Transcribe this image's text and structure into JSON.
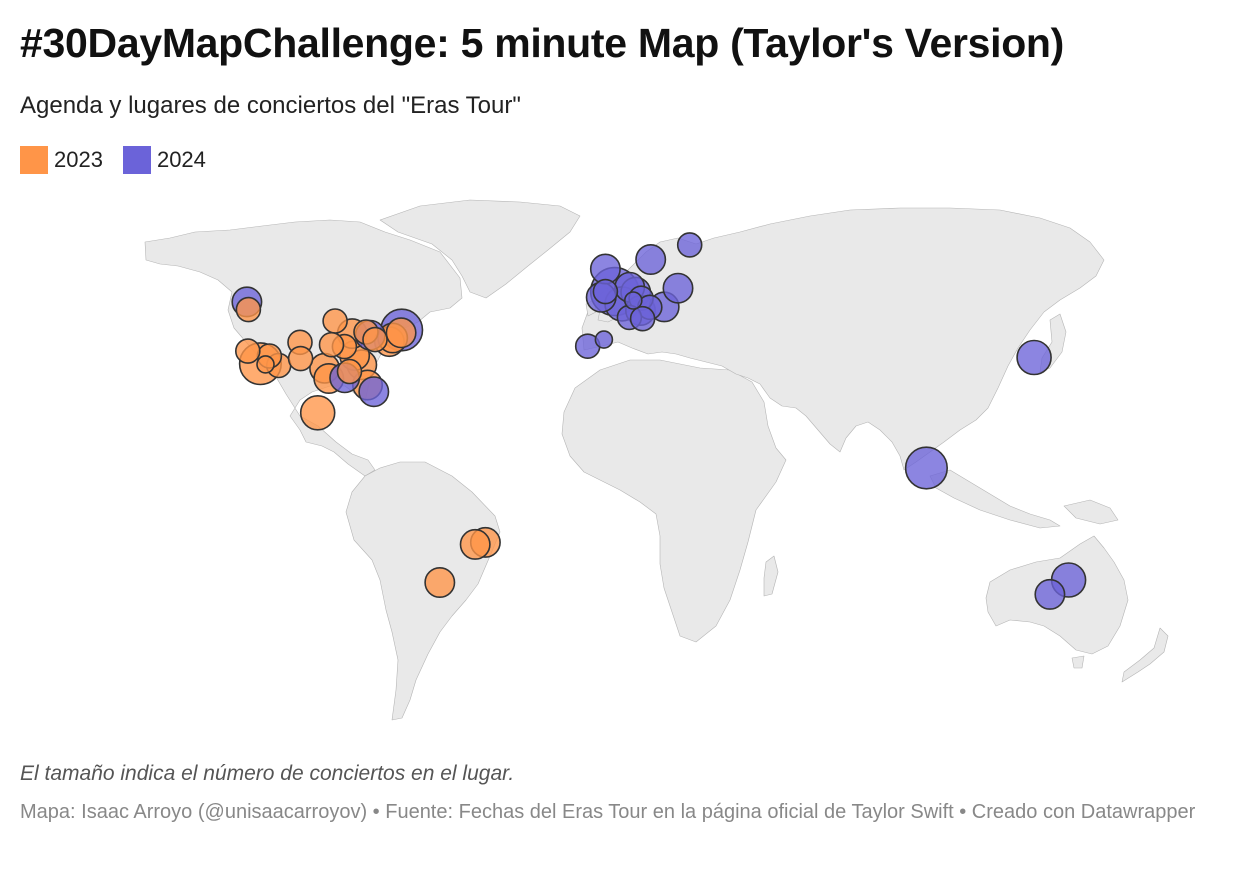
{
  "header": {
    "title": "#30DayMapChallenge: 5 minute Map (Taylor's Version)",
    "subtitle": "Agenda y lugares de conciertos del \"Eras Tour\""
  },
  "legend": [
    {
      "label": "2023",
      "color": "#ff9548"
    },
    {
      "label": "2024",
      "color": "#6b63d9"
    }
  ],
  "footer": {
    "note": "El tamaño indica el número de conciertos en el lugar.",
    "source": "Mapa: Isaac Arroyo (@unisaacarroyov) • Fuente: Fechas del Eras Tour en la página oficial de Taylor Swift • Creado con Datawrapper"
  },
  "map_data": {
    "encoding": {
      "size": "número de conciertos en el lugar",
      "color": "año"
    },
    "venues": [
      {
        "year": 2023,
        "lon": -112.1,
        "lat": 33.5,
        "concerts": 2
      },
      {
        "year": 2023,
        "lon": -115.2,
        "lat": 36.1,
        "concerts": 2
      },
      {
        "year": 2023,
        "lon": -96.8,
        "lat": 32.7,
        "concerts": 3
      },
      {
        "year": 2023,
        "lon": -95.4,
        "lat": 29.8,
        "concerts": 3
      },
      {
        "year": 2023,
        "lon": -84.4,
        "lat": 33.7,
        "concerts": 3
      },
      {
        "year": 2023,
        "lon": -86.8,
        "lat": 36.2,
        "concerts": 3
      },
      {
        "year": 2023,
        "lon": -82.5,
        "lat": 27.9,
        "concerts": 3
      },
      {
        "year": 2023,
        "lon": -75.2,
        "lat": 39.9,
        "concerts": 3
      },
      {
        "year": 2023,
        "lon": -74.1,
        "lat": 40.8,
        "concerts": 3
      },
      {
        "year": 2023,
        "lon": -71.3,
        "lat": 42.1,
        "concerts": 3
      },
      {
        "year": 2023,
        "lon": -87.6,
        "lat": 41.9,
        "concerts": 3
      },
      {
        "year": 2023,
        "lon": -83.0,
        "lat": 42.3,
        "concerts": 2
      },
      {
        "year": 2023,
        "lon": -80.0,
        "lat": 40.4,
        "concerts": 2
      },
      {
        "year": 2023,
        "lon": -93.3,
        "lat": 44.97,
        "concerts": 2
      },
      {
        "year": 2023,
        "lon": -90.2,
        "lat": 38.6,
        "concerts": 2
      },
      {
        "year": 2023,
        "lon": -94.5,
        "lat": 39.1,
        "concerts": 2
      },
      {
        "year": 2023,
        "lon": -105.0,
        "lat": 39.7,
        "concerts": 2
      },
      {
        "year": 2023,
        "lon": -104.8,
        "lat": 35.4,
        "concerts": 2
      },
      {
        "year": 2023,
        "lon": -122.2,
        "lat": 47.6,
        "concerts": 2
      },
      {
        "year": 2023,
        "lon": -122.4,
        "lat": 37.4,
        "concerts": 2
      },
      {
        "year": 2023,
        "lon": -118.2,
        "lat": 34.0,
        "concerts": 6
      },
      {
        "year": 2023,
        "lon": -116.5,
        "lat": 33.8,
        "concerts": 1
      },
      {
        "year": 2023,
        "lon": -88.5,
        "lat": 31.8,
        "concerts": 2
      },
      {
        "year": 2023,
        "lon": -99.1,
        "lat": 19.4,
        "concerts": 4
      },
      {
        "year": 2023,
        "lon": -58.4,
        "lat": -34.6,
        "concerts": 3
      },
      {
        "year": 2023,
        "lon": -43.2,
        "lat": -22.9,
        "concerts": 3
      },
      {
        "year": 2023,
        "lon": -46.6,
        "lat": -23.5,
        "concerts": 3
      },
      {
        "year": 2024,
        "lon": 139.7,
        "lat": 35.7,
        "concerts": 4
      },
      {
        "year": 2024,
        "lon": 103.8,
        "lat": 1.35,
        "concerts": 6
      },
      {
        "year": 2024,
        "lon": 144.96,
        "lat": -37.8,
        "concerts": 3
      },
      {
        "year": 2024,
        "lon": 151.2,
        "lat": -33.9,
        "concerts": 4
      },
      {
        "year": 2024,
        "lon": 2.35,
        "lat": 48.86,
        "concerts": 4
      },
      {
        "year": 2024,
        "lon": 11.9,
        "lat": 57.7,
        "concerts": 3
      },
      {
        "year": 2024,
        "lon": -9.1,
        "lat": 38.7,
        "concerts": 2
      },
      {
        "year": 2024,
        "lon": -3.7,
        "lat": 40.4,
        "concerts": 1
      },
      {
        "year": 2024,
        "lon": -4.6,
        "lat": 50.3,
        "concerts": 3
      },
      {
        "year": 2024,
        "lon": -3.2,
        "lat": 55.95,
        "concerts": 3
      },
      {
        "year": 2024,
        "lon": -3.2,
        "lat": 51.5,
        "concerts": 2
      },
      {
        "year": 2024,
        "lon": -0.1,
        "lat": 51.5,
        "concerts": 8
      },
      {
        "year": 2024,
        "lon": 6.9,
        "lat": 51.4,
        "concerts": 3
      },
      {
        "year": 2024,
        "lon": 4.9,
        "lat": 52.4,
        "concerts": 3
      },
      {
        "year": 2024,
        "lon": 8.7,
        "lat": 50.1,
        "concerts": 2
      },
      {
        "year": 2024,
        "lon": 11.6,
        "lat": 48.1,
        "concerts": 2
      },
      {
        "year": 2024,
        "lon": 4.8,
        "lat": 45.8,
        "concerts": 2
      },
      {
        "year": 2024,
        "lon": 8.5,
        "lat": 47.4,
        "concerts": 3
      },
      {
        "year": 2024,
        "lon": 9.2,
        "lat": 45.5,
        "concerts": 2
      },
      {
        "year": 2024,
        "lon": 16.4,
        "lat": 48.2,
        "concerts": 3
      },
      {
        "year": 2024,
        "lon": 21.0,
        "lat": 52.2,
        "concerts": 3
      },
      {
        "year": 2024,
        "lon": 24.9,
        "lat": 60.2,
        "concerts": 2
      },
      {
        "year": 2024,
        "lon": 6.1,
        "lat": 49.6,
        "concerts": 1
      },
      {
        "year": 2024,
        "lon": -71.1,
        "lat": 42.8,
        "concerts": 6
      },
      {
        "year": 2024,
        "lon": -81.6,
        "lat": 41.5,
        "concerts": 3
      },
      {
        "year": 2024,
        "lon": -90.1,
        "lat": 30.0,
        "concerts": 3
      },
      {
        "year": 2024,
        "lon": -80.4,
        "lat": 25.9,
        "concerts": 3
      },
      {
        "year": 2024,
        "lon": -122.7,
        "lat": 49.3,
        "concerts": 3
      }
    ]
  }
}
